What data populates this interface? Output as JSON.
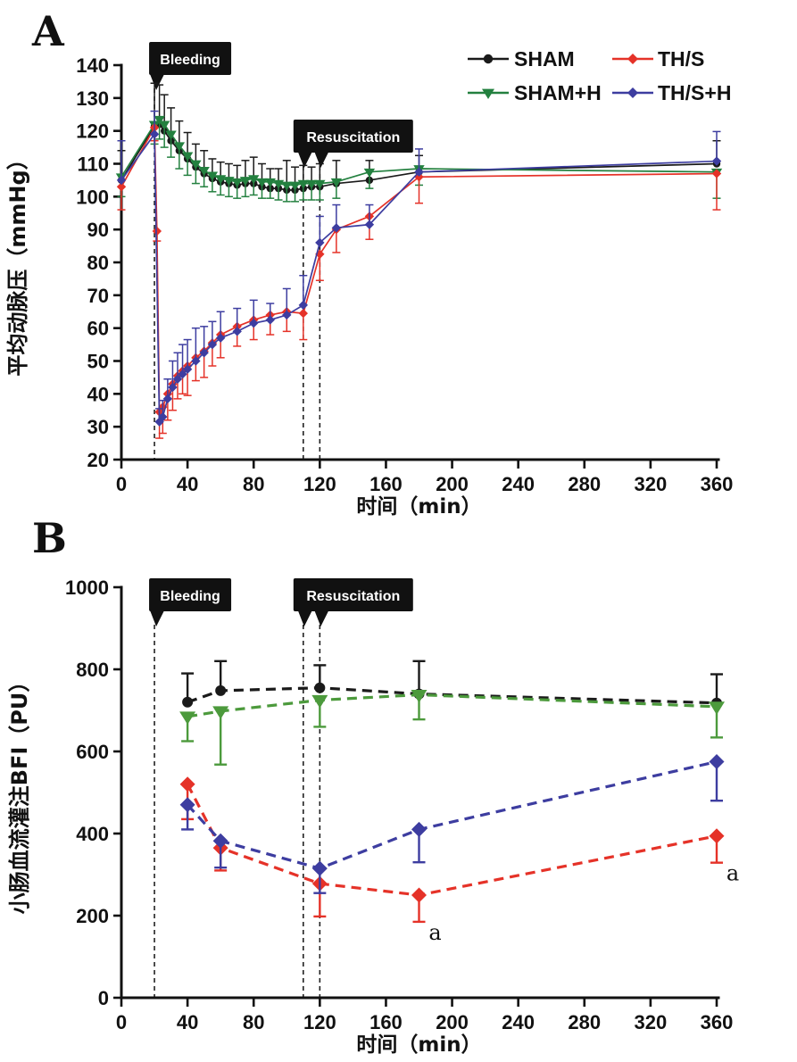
{
  "chart_data": [
    {
      "panel_letter": "A",
      "type": "line",
      "title": "",
      "xlabel": "时间（min）",
      "ylabel": "平均动脉压（mmHg）",
      "xlim": [
        0,
        360
      ],
      "ylim": [
        20,
        140
      ],
      "x_ticks": [
        0,
        40,
        80,
        120,
        160,
        200,
        240,
        280,
        320,
        360
      ],
      "y_ticks": [
        20,
        30,
        40,
        50,
        60,
        70,
        80,
        90,
        100,
        110,
        120,
        130,
        140
      ],
      "grid": false,
      "annotations": {
        "bleeding": {
          "label": "Bleeding",
          "x": 20
        },
        "resuscitation": {
          "label": "Resuscitation",
          "x1": 110,
          "x2": 120
        }
      },
      "legend": {
        "position": "top-right",
        "entries": [
          "SHAM",
          "TH/S",
          "SHAM+H",
          "TH/S+H"
        ]
      },
      "series": [
        {
          "name": "SHAM",
          "color": "#1a1a1a",
          "marker": "circle",
          "line_style": "solid",
          "error_direction": "up",
          "x": [
            0,
            20,
            23,
            26,
            30,
            35,
            40,
            45,
            50,
            55,
            60,
            65,
            70,
            75,
            80,
            85,
            90,
            95,
            100,
            105,
            110,
            115,
            120,
            130,
            150,
            180,
            360
          ],
          "y": [
            105,
            121.5,
            122,
            120,
            117,
            114,
            111.5,
            109,
            107,
            105.5,
            104.5,
            104,
            103.5,
            104,
            104,
            103,
            102.5,
            102.5,
            102,
            102,
            102.5,
            103,
            103,
            104,
            105,
            107.5,
            110
          ],
          "err": [
            9,
            13,
            12,
            11,
            10,
            9,
            8,
            7,
            7,
            6,
            6,
            6,
            6,
            7,
            8,
            7,
            6,
            6,
            9,
            7,
            7,
            6,
            7,
            7,
            6,
            5,
            7
          ]
        },
        {
          "name": "SHAM+H",
          "color": "#23803f",
          "marker": "triangle-down",
          "line_style": "solid",
          "error_direction": "down",
          "x": [
            0,
            20,
            23,
            26,
            30,
            35,
            40,
            45,
            50,
            55,
            60,
            65,
            70,
            75,
            80,
            85,
            90,
            95,
            100,
            105,
            110,
            115,
            120,
            130,
            150,
            180,
            360
          ],
          "y": [
            106,
            122,
            123.5,
            122,
            119,
            115.5,
            112.5,
            110,
            108,
            106.5,
            105.5,
            105,
            104.5,
            105,
            105.5,
            104.5,
            104.5,
            104,
            103.5,
            103.5,
            104,
            104,
            104,
            104.5,
            107.5,
            108.5,
            107.5
          ],
          "err": [
            6,
            6,
            6,
            7,
            7,
            7,
            6,
            6,
            5,
            5,
            5,
            5,
            5,
            5,
            5,
            5,
            5,
            5,
            5,
            5,
            5,
            5,
            5,
            5,
            5,
            5,
            8
          ]
        },
        {
          "name": "TH/S",
          "color": "#e53228",
          "marker": "diamond",
          "line_style": "solid",
          "error_direction": "down",
          "x": [
            0,
            20,
            21.5,
            23,
            25,
            28,
            31,
            34,
            37,
            40,
            45,
            50,
            55,
            60,
            70,
            80,
            90,
            100,
            110,
            120,
            130,
            150,
            180,
            360
          ],
          "y": [
            103,
            121,
            89.5,
            34.5,
            36,
            40,
            43,
            45.5,
            47,
            48.5,
            51,
            53,
            55.5,
            58,
            60.5,
            62.5,
            64,
            65,
            64.5,
            82.5,
            90,
            94,
            106,
            107
          ],
          "err": [
            7,
            4,
            3,
            8,
            8,
            8,
            8,
            7,
            7,
            9,
            7,
            8,
            7,
            7,
            6,
            6,
            6,
            6,
            8,
            8,
            7,
            7,
            8,
            11
          ]
        },
        {
          "name": "TH/S+H",
          "color": "#3d3da0",
          "marker": "diamond",
          "line_style": "solid",
          "error_direction": "up",
          "x": [
            0,
            20,
            23,
            25,
            28,
            31,
            34,
            37,
            40,
            45,
            50,
            55,
            60,
            70,
            80,
            90,
            100,
            110,
            120,
            130,
            150,
            180,
            360
          ],
          "y": [
            105,
            119,
            31.5,
            33,
            38.5,
            42,
            44.5,
            46,
            47.5,
            50,
            52.5,
            55,
            57,
            59,
            61.5,
            62.5,
            64,
            67,
            86,
            90.5,
            91.5,
            107.5,
            110.8
          ],
          "err": [
            12,
            7,
            4,
            5,
            6,
            8,
            8,
            9,
            9,
            10,
            8,
            7,
            8,
            7,
            7,
            5,
            8,
            9,
            8,
            7,
            6,
            7,
            9
          ]
        }
      ]
    },
    {
      "panel_letter": "B",
      "type": "line",
      "title": "",
      "xlabel": "时间（min）",
      "ylabel": "小肠血流灌注BFI（PU）",
      "xlim": [
        0,
        360
      ],
      "ylim": [
        0,
        1000
      ],
      "x_ticks": [
        0,
        40,
        80,
        120,
        160,
        200,
        240,
        280,
        320,
        360
      ],
      "y_ticks": [
        0,
        200,
        400,
        600,
        800,
        1000
      ],
      "grid": false,
      "annotations": {
        "bleeding": {
          "label": "Bleeding",
          "x": 20
        },
        "resuscitation": {
          "label": "Resuscitation",
          "x1": 110,
          "x2": 120
        }
      },
      "legend": null,
      "series": [
        {
          "name": "SHAM",
          "color": "#1a1a1a",
          "marker": "circle",
          "line_style": "dashed",
          "error_direction": "up",
          "x": [
            40,
            60,
            120,
            180,
            360
          ],
          "y": [
            720,
            748,
            755,
            740,
            718
          ],
          "err": [
            70,
            72,
            55,
            80,
            70
          ]
        },
        {
          "name": "SHAM+H",
          "color": "#4c9a3c",
          "marker": "triangle-down",
          "line_style": "dashed",
          "error_direction": "down",
          "x": [
            40,
            60,
            120,
            180,
            360
          ],
          "y": [
            685,
            698,
            725,
            738,
            709
          ],
          "err": [
            60,
            130,
            65,
            60,
            75
          ]
        },
        {
          "name": "TH/S",
          "color": "#e53228",
          "marker": "diamond",
          "line_style": "dashed",
          "error_direction": "down",
          "x": [
            40,
            60,
            120,
            180,
            360
          ],
          "y": [
            520,
            365,
            278,
            250,
            394
          ],
          "err": [
            85,
            55,
            80,
            65,
            65
          ],
          "sig_labels": [
            {
              "point_index": 3,
              "text": "a"
            },
            {
              "point_index": 4,
              "text": "a"
            }
          ]
        },
        {
          "name": "TH/S+H",
          "color": "#3d3da0",
          "marker": "diamond",
          "line_style": "dashed",
          "error_direction": "down",
          "x": [
            40,
            60,
            120,
            180,
            360
          ],
          "y": [
            470,
            382,
            315,
            410,
            575
          ],
          "err": [
            60,
            65,
            60,
            80,
            95
          ]
        }
      ]
    }
  ]
}
